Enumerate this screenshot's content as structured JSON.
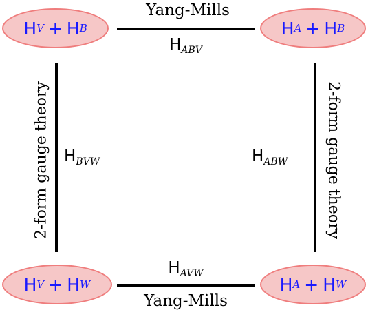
{
  "nodes": {
    "top_left": {
      "left": "H",
      "left_sub": "V",
      "plus": "+",
      "right": "H",
      "right_sub": "B"
    },
    "top_right": {
      "left": "H",
      "left_sub": "A",
      "plus": "+",
      "right": "H",
      "right_sub": "B"
    },
    "bottom_left": {
      "left": "H",
      "left_sub": "V",
      "plus": "+",
      "right": "H",
      "right_sub": "W"
    },
    "bottom_right": {
      "left": "H",
      "left_sub": "A",
      "plus": "+",
      "right": "H",
      "right_sub": "W"
    }
  },
  "edges": {
    "top": {
      "text": "Yang-Mills",
      "math": "H",
      "math_sub": "ABV"
    },
    "bottom": {
      "text": "Yang-Mills",
      "math": "H",
      "math_sub": "AVW"
    },
    "left": {
      "text": "2-form gauge theory",
      "math": "H",
      "math_sub": "BVW"
    },
    "right": {
      "text": "2-form gauge theory",
      "math": "H",
      "math_sub": "ABW"
    }
  },
  "colors": {
    "node_fill": "#f6c7c7",
    "node_border": "#ef7d7d",
    "node_text": "#1a1aff",
    "edge": "#000000"
  }
}
